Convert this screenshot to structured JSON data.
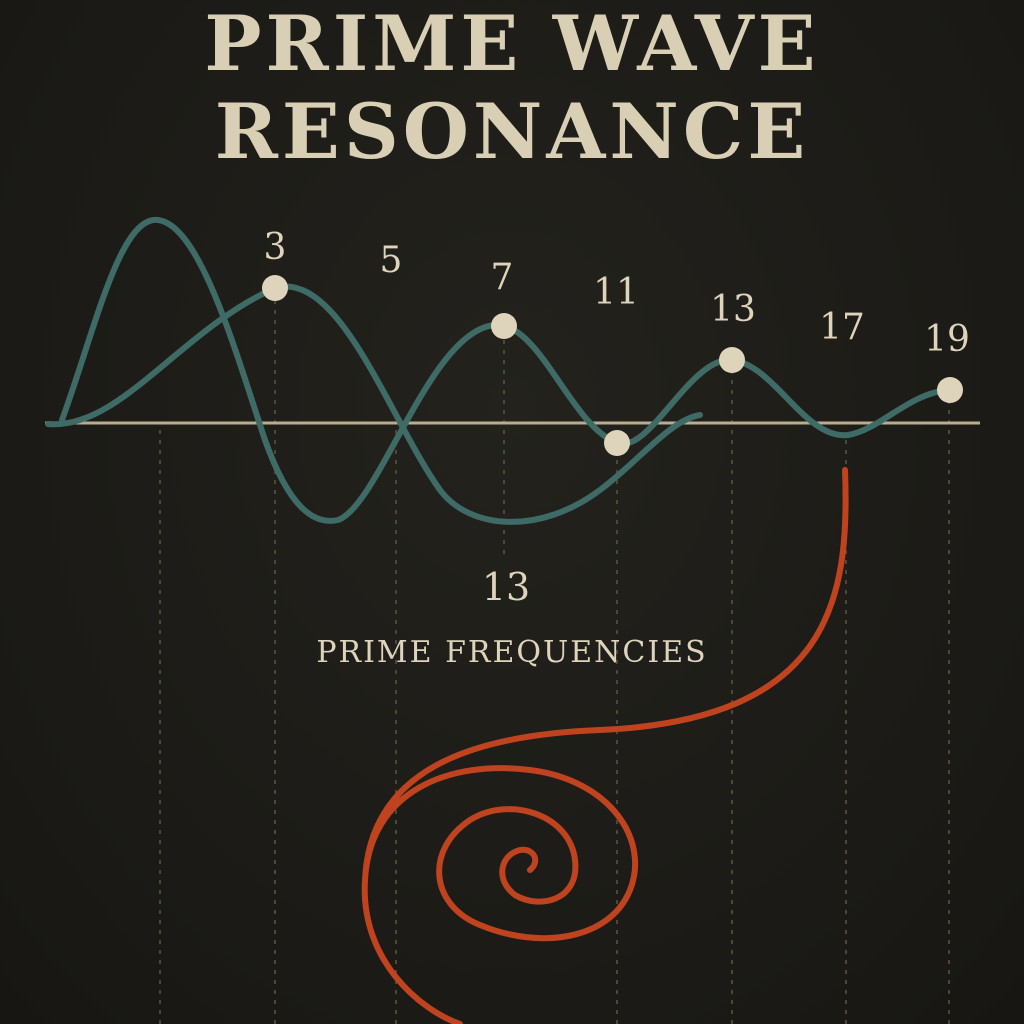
{
  "poster": {
    "title_line1": "PRIME WAVE",
    "title_line2": "RESONANCE",
    "subtitle": "PRIME FREQUENCIES",
    "center_number": "13"
  },
  "prime_labels": [
    "3",
    "5",
    "7",
    "11",
    "13",
    "17",
    "19"
  ],
  "colors": {
    "background": "#1c1b17",
    "text": "#ddd4bb",
    "wave": "#3f6b66",
    "spiral": "#c0431f",
    "axis": "#b9ad8e",
    "dot": "#ddd4bb"
  }
}
